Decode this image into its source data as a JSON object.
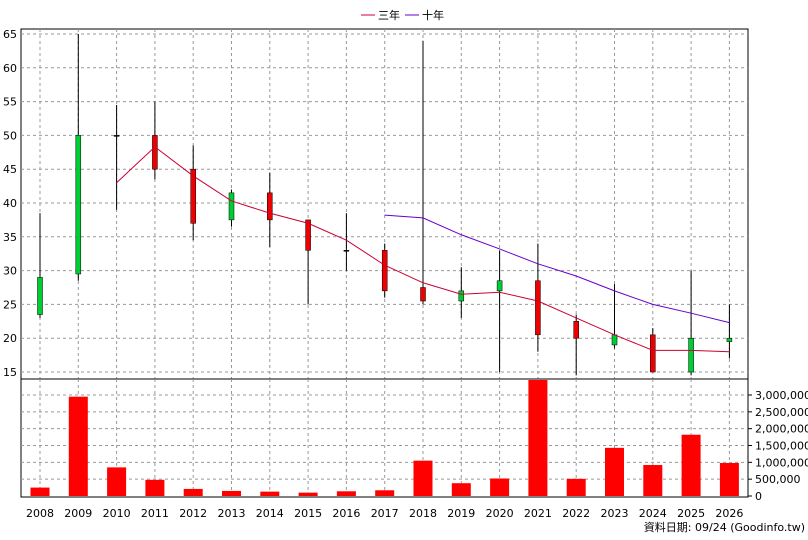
{
  "chart_data": {
    "type": "candlestick",
    "legend": [
      {
        "label": "三年",
        "color": "#cc0033"
      },
      {
        "label": "十年",
        "color": "#6600cc"
      }
    ],
    "source": "資料日期: 09/24  (Goodinfo.tw)",
    "colors": {
      "up": "#00cc33",
      "down": "#ee0000",
      "volume": "#ff0000",
      "grid": "#999999"
    },
    "years": [
      "2008",
      "2009",
      "2010",
      "2011",
      "2012",
      "2013",
      "2014",
      "2015",
      "2016",
      "2017",
      "2018",
      "2019",
      "2020",
      "2021",
      "2022",
      "2023",
      "2024",
      "2025",
      "2026"
    ],
    "price_axis": {
      "min": 15,
      "max": 65,
      "ticks": [
        15,
        20,
        25,
        30,
        35,
        40,
        45,
        50,
        55,
        60,
        65
      ]
    },
    "volume_axis": {
      "max": 3000000,
      "ticks": [
        0,
        500000,
        1000000,
        1500000,
        2000000,
        2500000,
        3000000
      ],
      "tick_labels": [
        "0",
        "500,000",
        "1,000,000",
        "1,500,000",
        "2,000,000",
        "2,500,000",
        "3,000,000"
      ]
    },
    "candles": [
      {
        "year": "2008",
        "open": 23.5,
        "close": 29.0,
        "high": 38.5,
        "low": 23.0
      },
      {
        "year": "2009",
        "open": 29.5,
        "close": 50.0,
        "high": 65.0,
        "low": 28.5
      },
      {
        "year": "2010",
        "open": 50.0,
        "close": 50.0,
        "high": 54.5,
        "low": 39.0
      },
      {
        "year": "2011",
        "open": 50.0,
        "close": 45.0,
        "high": 55.0,
        "low": 43.5
      },
      {
        "year": "2012",
        "open": 45.0,
        "close": 37.0,
        "high": 48.5,
        "low": 34.5
      },
      {
        "year": "2013",
        "open": 37.5,
        "close": 41.5,
        "high": 42.0,
        "low": 36.5
      },
      {
        "year": "2014",
        "open": 41.5,
        "close": 37.5,
        "high": 44.5,
        "low": 33.5
      },
      {
        "year": "2015",
        "open": 37.5,
        "close": 33.0,
        "high": 37.5,
        "low": 25.0
      },
      {
        "year": "2016",
        "open": 33.0,
        "close": 33.0,
        "high": 38.5,
        "low": 30.0
      },
      {
        "year": "2017",
        "open": 33.0,
        "close": 27.0,
        "high": 34.0,
        "low": 26.0
      },
      {
        "year": "2018",
        "open": 27.5,
        "close": 25.5,
        "high": 64.0,
        "low": 25.0
      },
      {
        "year": "2019",
        "open": 25.5,
        "close": 27.0,
        "high": 30.5,
        "low": 23.0
      },
      {
        "year": "2020",
        "open": 27.0,
        "close": 28.5,
        "high": 33.0,
        "low": 15.0
      },
      {
        "year": "2021",
        "open": 28.5,
        "close": 20.5,
        "high": 34.0,
        "low": 18.0
      },
      {
        "year": "2022",
        "open": 22.5,
        "close": 20.0,
        "high": 23.5,
        "low": 14.5
      },
      {
        "year": "2023",
        "open": 19.0,
        "close": 20.5,
        "high": 28.0,
        "low": 18.5
      },
      {
        "year": "2024",
        "open": 20.5,
        "close": 15.0,
        "high": 21.5,
        "low": 15.0
      },
      {
        "year": "2025",
        "open": 15.0,
        "close": 20.0,
        "high": 30.0,
        "low": 14.5
      },
      {
        "year": "2026",
        "open": 19.5,
        "close": 20.0,
        "high": 25.0,
        "low": 17.0
      }
    ],
    "ma3": [
      null,
      null,
      43.0,
      48.3,
      44.0,
      40.3,
      38.5,
      37.0,
      34.5,
      30.8,
      28.2,
      26.5,
      26.8,
      25.5,
      23.0,
      20.5,
      18.2,
      18.2,
      18.0
    ],
    "ma10": [
      null,
      null,
      null,
      null,
      null,
      null,
      null,
      null,
      null,
      38.2,
      37.8,
      35.3,
      33.2,
      31.0,
      29.2,
      27.0,
      25.0,
      23.7,
      22.3
    ],
    "volume": [
      250000,
      2950000,
      850000,
      480000,
      210000,
      150000,
      130000,
      100000,
      140000,
      170000,
      1050000,
      380000,
      520000,
      3550000,
      510000,
      1430000,
      920000,
      1820000,
      980000
    ]
  }
}
